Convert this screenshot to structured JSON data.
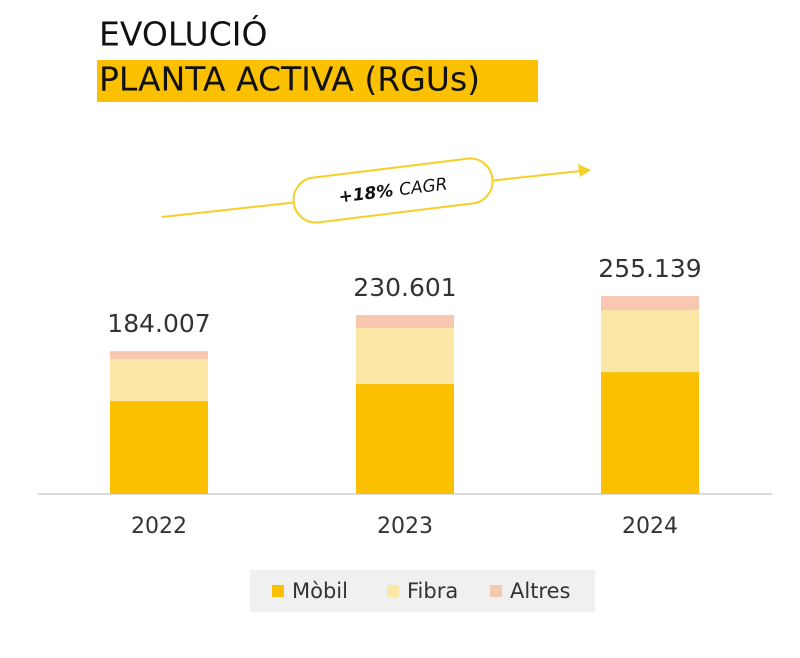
{
  "chart_data": {
    "type": "stacked-bar",
    "title": "EVOLUCIÓ",
    "subtitle": "PLANTA ACTIVA (RGUs)",
    "annotation": {
      "value": "+18%",
      "text": "CAGR"
    },
    "categories": [
      "2022",
      "2023",
      "2024"
    ],
    "series": [
      {
        "name": "Mòbil",
        "color": "#fbc000",
        "values": [
          119800,
          141700,
          157100
        ]
      },
      {
        "name": "Fibra",
        "color": "#fde7a6",
        "values": [
          54100,
          72100,
          79900
        ]
      },
      {
        "name": "Altres",
        "color": "#f9c7b0",
        "values": [
          10100,
          16800,
          18000
        ]
      }
    ],
    "totals": {
      "values": [
        184007,
        230601,
        255139
      ],
      "value_labels": [
        "184.007",
        "230.601",
        "255.139"
      ]
    }
  }
}
